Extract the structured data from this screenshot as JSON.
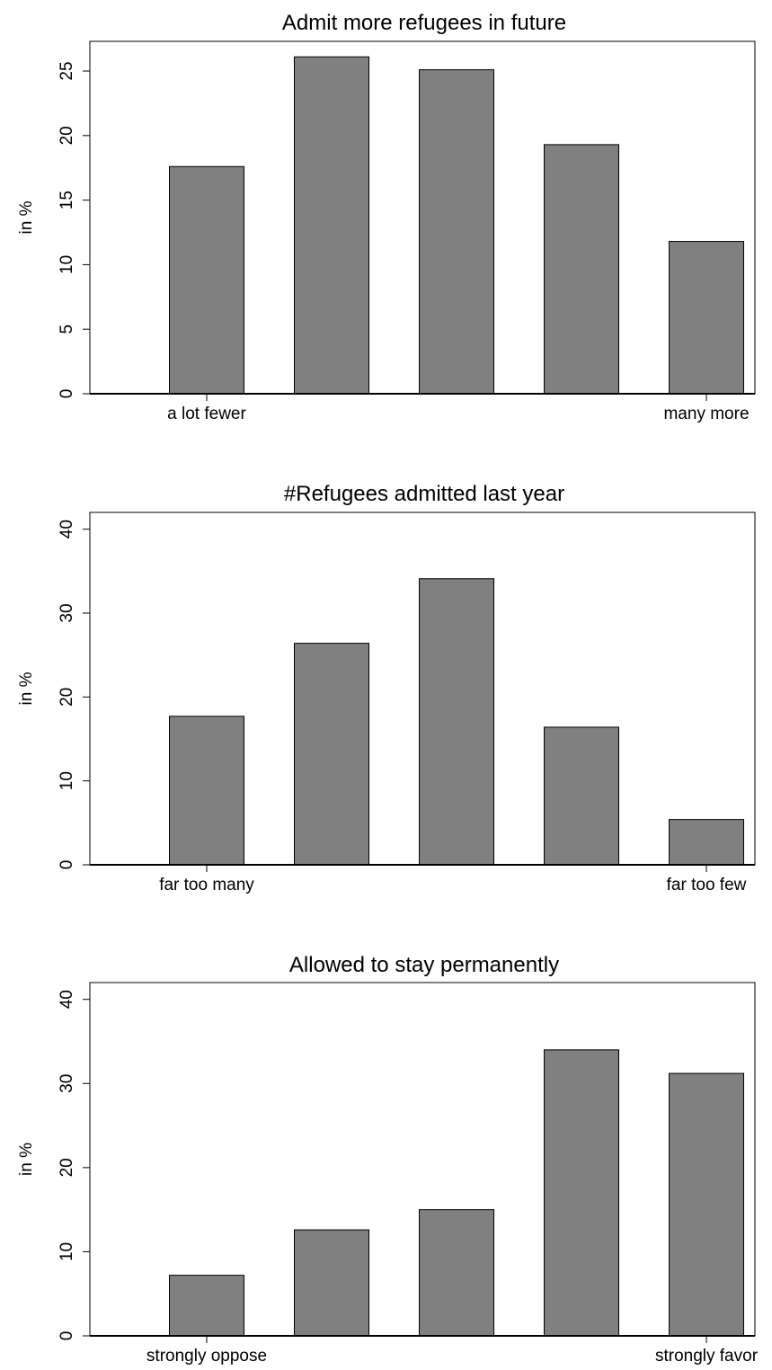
{
  "chart_data": [
    {
      "type": "bar",
      "title": "Admit more refugees in future",
      "ylabel": "in %",
      "xlabel": "",
      "categories": [
        "1",
        "2",
        "3",
        "4",
        "5"
      ],
      "values": [
        17.6,
        26.1,
        25.1,
        19.3,
        11.8
      ],
      "ylim": [
        0,
        27.3
      ],
      "yticks": [
        0,
        5,
        10,
        15,
        20,
        25
      ],
      "x_end_labels": [
        "a lot fewer",
        "many more"
      ],
      "grid": false,
      "colors": {
        "bar": "#808080",
        "stroke": "#000000"
      }
    },
    {
      "type": "bar",
      "title": "#Refugees admitted last year",
      "ylabel": "in %",
      "xlabel": "",
      "categories": [
        "1",
        "2",
        "3",
        "4",
        "5"
      ],
      "values": [
        17.7,
        26.4,
        34.1,
        16.4,
        5.4
      ],
      "ylim": [
        0,
        42
      ],
      "yticks": [
        0,
        10,
        20,
        30,
        40
      ],
      "x_end_labels": [
        "far too many",
        "far too few"
      ],
      "grid": false,
      "colors": {
        "bar": "#808080",
        "stroke": "#000000"
      }
    },
    {
      "type": "bar",
      "title": "Allowed to stay permanently",
      "ylabel": "in %",
      "xlabel": "",
      "categories": [
        "1",
        "2",
        "3",
        "4",
        "5"
      ],
      "values": [
        7.2,
        12.6,
        15.0,
        34.0,
        31.2
      ],
      "ylim": [
        0,
        42
      ],
      "yticks": [
        0,
        10,
        20,
        30,
        40
      ],
      "x_end_labels": [
        "strongly oppose",
        "strongly favor"
      ],
      "grid": false,
      "colors": {
        "bar": "#808080",
        "stroke": "#000000"
      }
    }
  ]
}
